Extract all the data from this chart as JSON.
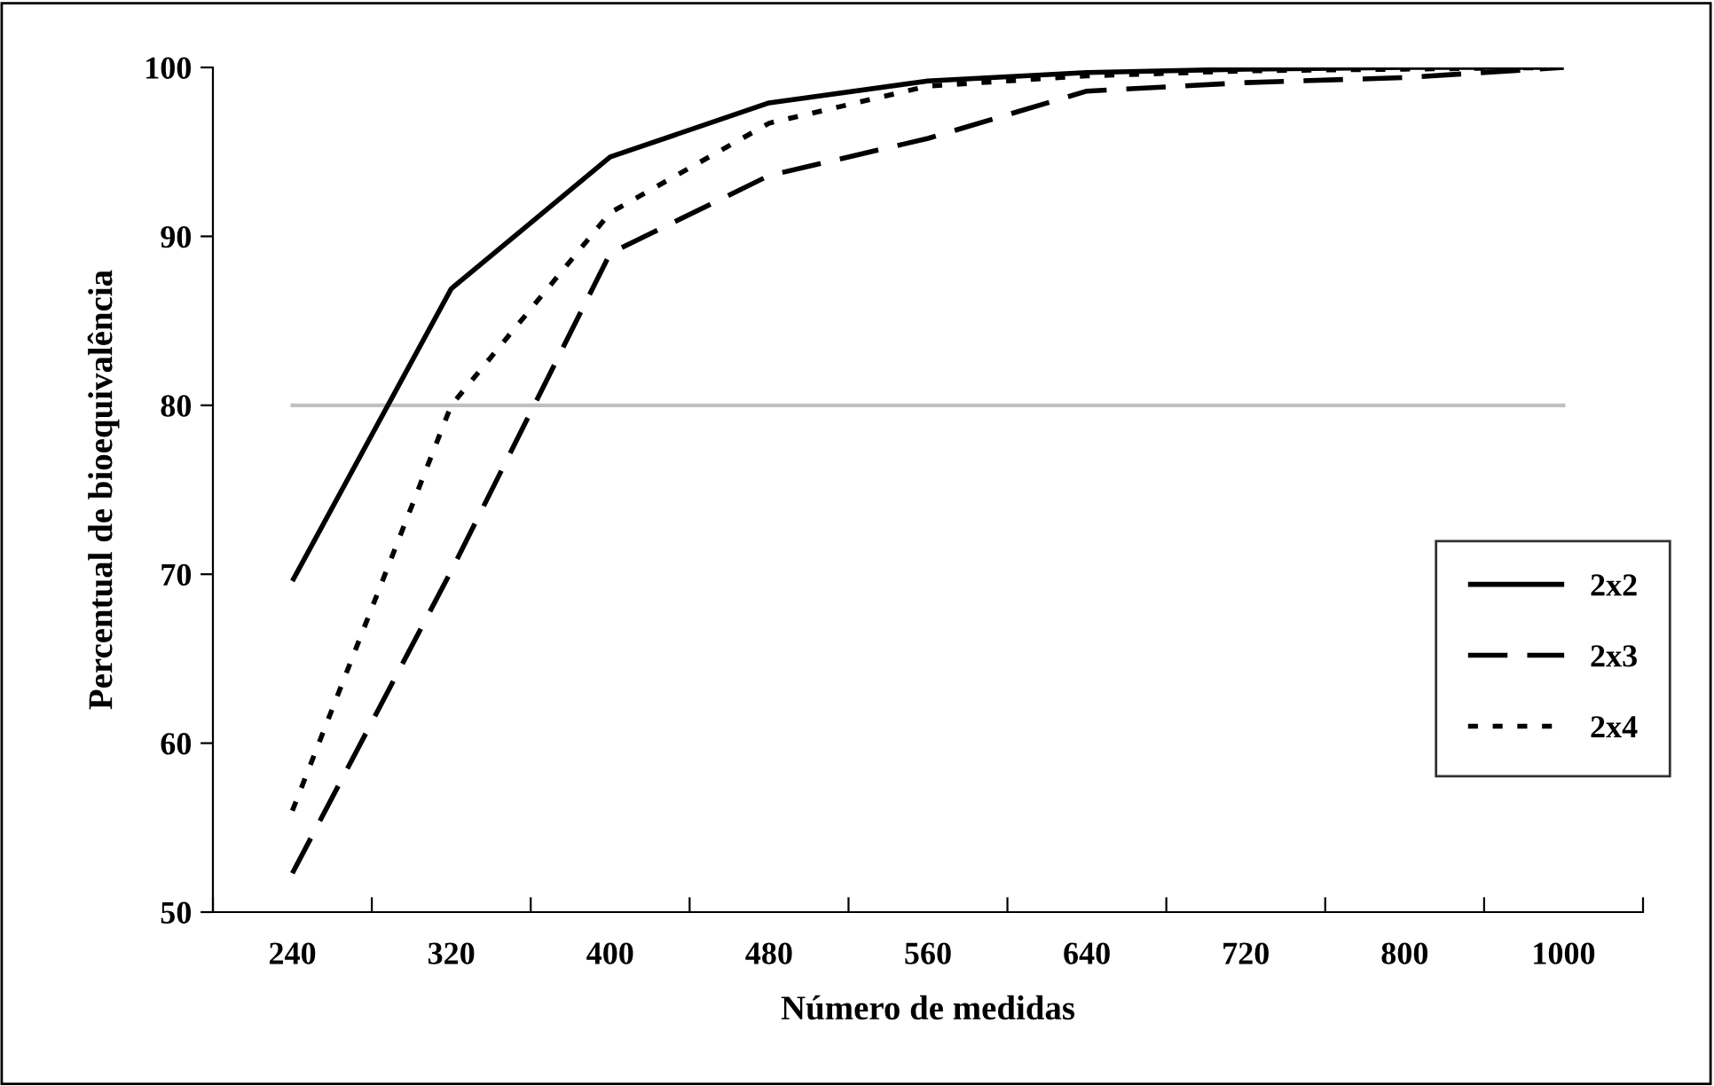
{
  "chart_data": {
    "type": "line",
    "xlabel": "Número de medidas",
    "ylabel": "Percentual de bioequivalência",
    "categories": [
      "240",
      "320",
      "400",
      "480",
      "560",
      "640",
      "720",
      "800",
      "1000"
    ],
    "ylim": [
      50,
      100
    ],
    "yticks": [
      50,
      60,
      70,
      80,
      90,
      100
    ],
    "grid": false,
    "legend": "right",
    "marker": "none",
    "ref_lines": [
      {
        "axis": "y",
        "value": 80,
        "color": "#c0c0c0"
      }
    ],
    "series": [
      {
        "name": "2x2",
        "color": "#000000",
        "line_style": "solid",
        "values": [
          69.6,
          86.9,
          94.7,
          97.9,
          99.2,
          99.7,
          99.9,
          100,
          100
        ]
      },
      {
        "name": "2x3",
        "color": "#000000",
        "line_style": "dashed",
        "values": [
          52.3,
          70.2,
          89.0,
          93.6,
          95.8,
          98.6,
          99.1,
          99.4,
          100
        ]
      },
      {
        "name": "2x4",
        "color": "#000000",
        "line_style": "dotted",
        "values": [
          56.0,
          80.0,
          91.4,
          96.7,
          98.9,
          99.5,
          99.8,
          99.9,
          100
        ]
      }
    ]
  }
}
